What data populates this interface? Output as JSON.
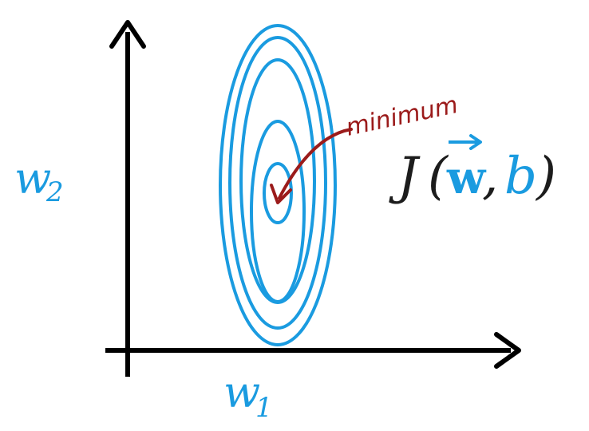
{
  "colors": {
    "axis": "#000000",
    "contour": "#1a9be0",
    "annotation": "#9b1b1b",
    "text_dark": "#1c1c1c",
    "background": "#ffffff"
  },
  "labels": {
    "y_axis_var": "w",
    "y_axis_sub": "2",
    "x_axis_var": "w",
    "x_axis_sub": "1",
    "annotation": "minimum"
  },
  "formula": {
    "func": "J",
    "open_paren": "(",
    "vec": "w",
    "comma": ",",
    "b": "b",
    "close_paren": ")"
  },
  "contours": {
    "count": 5,
    "shape": "concentric-ellipses",
    "minimum_marked": true
  }
}
